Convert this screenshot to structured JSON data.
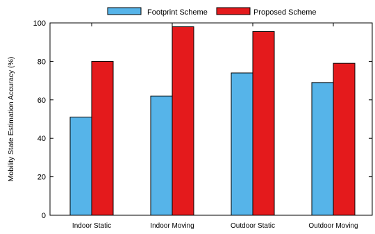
{
  "chart_data": {
    "type": "bar",
    "title": "",
    "xlabel": "",
    "ylabel": "Mobility State Estimation Accuracy (%)",
    "ylim": [
      0,
      100
    ],
    "yticks": [
      0,
      20,
      40,
      60,
      80,
      100
    ],
    "categories": [
      "Indoor Static",
      "Indoor Moving",
      "Outdoor Static",
      "Outdoor Moving"
    ],
    "series": [
      {
        "name": "Footprint Scheme",
        "values": [
          51,
          62,
          74,
          69
        ],
        "color": "#56b4e9"
      },
      {
        "name": "Proposed Scheme",
        "values": [
          80,
          98,
          95.5,
          79
        ],
        "color": "#e41a1c"
      }
    ],
    "legend_position": "top-center",
    "grid": false
  }
}
